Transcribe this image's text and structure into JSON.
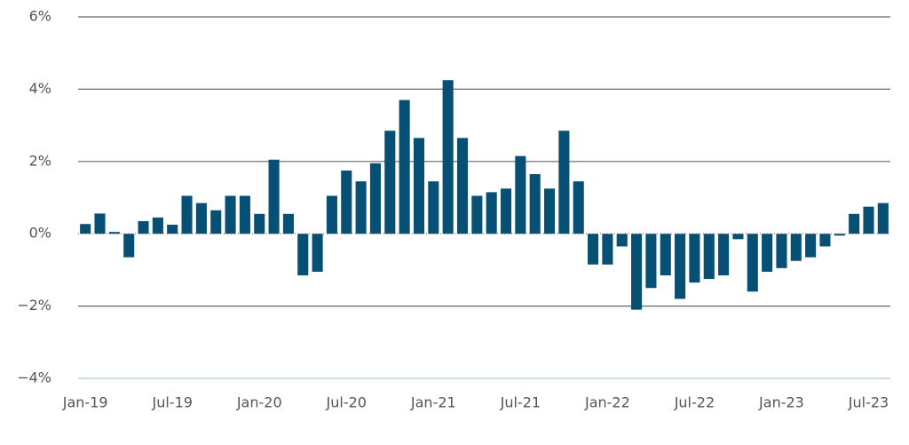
{
  "chart_data": {
    "type": "bar",
    "categories": [
      "Jan-19",
      null,
      null,
      null,
      null,
      null,
      "Jul-19",
      null,
      null,
      null,
      null,
      null,
      "Jan-20",
      null,
      null,
      null,
      null,
      null,
      "Jul-20",
      null,
      null,
      null,
      null,
      null,
      "Jan-21",
      null,
      null,
      null,
      null,
      null,
      "Jul-21",
      null,
      null,
      null,
      null,
      null,
      "Jan-22",
      null,
      null,
      null,
      null,
      null,
      "Jul-22",
      null,
      null,
      null,
      null,
      null,
      "Jan-23",
      null,
      null,
      null,
      null,
      null,
      "Jul-23",
      null
    ],
    "values": [
      0.27,
      0.56,
      0.05,
      -0.65,
      0.35,
      0.45,
      0.25,
      1.05,
      0.85,
      0.65,
      1.05,
      1.05,
      0.55,
      2.05,
      0.55,
      -1.15,
      -1.05,
      1.05,
      1.75,
      1.45,
      1.95,
      2.85,
      3.7,
      2.65,
      1.45,
      4.25,
      2.65,
      1.05,
      1.15,
      1.25,
      2.15,
      1.65,
      1.25,
      2.85,
      1.45,
      -0.85,
      -0.85,
      -0.35,
      -2.1,
      -1.5,
      -1.15,
      -1.8,
      -1.35,
      -1.25,
      -1.15,
      -0.15,
      -1.6,
      -1.05,
      -0.95,
      -0.75,
      -0.65,
      -0.35,
      -0.05,
      0.55,
      0.75,
      0.85
    ],
    "color": "#064f75",
    "ylim": [
      -4,
      6
    ],
    "yticks": [
      {
        "value": -4,
        "label": "−4%"
      },
      {
        "value": -2,
        "label": "−2%"
      },
      {
        "value": 0,
        "label": "0%"
      },
      {
        "value": 2,
        "label": "2%"
      },
      {
        "value": 4,
        "label": "4%"
      },
      {
        "value": 6,
        "label": "6%"
      }
    ],
    "grid": true
  }
}
